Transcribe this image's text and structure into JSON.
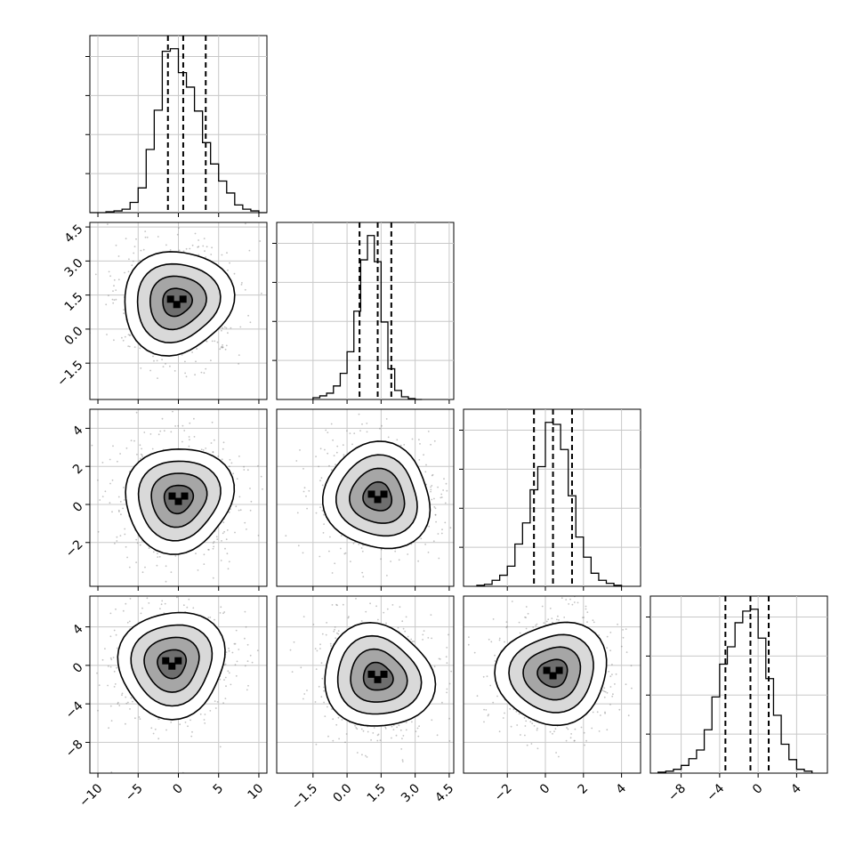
{
  "chart_data": {
    "type": "corner",
    "variables": [
      {
        "range": [
          -11,
          11
        ],
        "tick_values": [
          -10,
          -5,
          0,
          5,
          10
        ],
        "tick_labels": [
          "−10",
          "−5",
          "0",
          "5",
          "10"
        ],
        "quantiles": [
          -1.3,
          0.6,
          3.4
        ],
        "hist_bins": [
          -11,
          -10,
          -9,
          -8,
          -7,
          -6,
          -5,
          -4,
          -3,
          -2,
          -1,
          0,
          1,
          2,
          3,
          4,
          5,
          6,
          7,
          8,
          9,
          10,
          11
        ],
        "hist_counts": [
          0,
          0,
          1,
          2,
          4,
          12,
          29,
          74,
          120,
          189,
          192,
          164,
          147,
          119,
          82,
          57,
          37,
          23,
          9,
          4,
          2,
          0
        ]
      },
      {
        "range": [
          -3.1,
          4.7
        ],
        "tick_values": [
          -1.5,
          0.0,
          1.5,
          3.0,
          4.5
        ],
        "tick_labels": [
          "−1.5",
          "0.0",
          "1.5",
          "3.0",
          "4.5"
        ],
        "quantiles": [
          0.55,
          1.35,
          1.95
        ],
        "hist_bins": [
          -1.5,
          -1.2,
          -0.9,
          -0.6,
          -0.3,
          0.0,
          0.3,
          0.6,
          0.9,
          1.2,
          1.5,
          1.8,
          2.1,
          2.4,
          2.7,
          3.0,
          3.3
        ],
        "hist_counts": [
          2,
          4,
          7,
          15,
          29,
          53,
          98,
          155,
          182,
          153,
          86,
          34,
          10,
          3,
          1,
          0
        ]
      },
      {
        "range": [
          -4.3,
          5.0
        ],
        "tick_values": [
          -2,
          0,
          2,
          4
        ],
        "tick_labels": [
          "−2",
          "0",
          "2",
          "4"
        ],
        "quantiles": [
          -0.6,
          0.4,
          1.4
        ],
        "hist_bins": [
          -3.6,
          -3.2,
          -2.8,
          -2.4,
          -2.0,
          -1.6,
          -1.2,
          -0.8,
          -0.4,
          0.0,
          0.4,
          0.8,
          1.2,
          1.6,
          2.0,
          2.4,
          2.8,
          3.2,
          3.6,
          4.0
        ],
        "hist_counts": [
          1,
          2,
          6,
          11,
          20,
          42,
          63,
          96,
          119,
          163,
          161,
          136,
          90,
          49,
          29,
          13,
          6,
          3,
          1
        ]
      },
      {
        "range": [
          -11.2,
          7.2
        ],
        "tick_values": [
          -8,
          -4,
          0,
          4
        ],
        "tick_labels": [
          "−8",
          "−4",
          "0",
          "4"
        ],
        "quantiles": [
          -3.4,
          -0.8,
          1.1
        ],
        "hist_bins": [
          -10.4,
          -9.6,
          -8.8,
          -8.0,
          -7.2,
          -6.4,
          -5.6,
          -4.8,
          -4.0,
          -3.2,
          -2.4,
          -1.6,
          -0.8,
          0.0,
          0.8,
          1.6,
          2.4,
          3.2,
          4.0,
          4.8,
          5.6
        ],
        "hist_counts": [
          1,
          2,
          4,
          8,
          15,
          24,
          45,
          79,
          113,
          131,
          156,
          168,
          170,
          140,
          98,
          60,
          30,
          14,
          4,
          2
        ]
      }
    ],
    "pairs": [
      {
        "x_var": 0,
        "y_var": 1,
        "center": [
          -0.2,
          1.2
        ],
        "contour_levels": 4,
        "grid": true
      },
      {
        "x_var": 0,
        "y_var": 2,
        "center": [
          0.0,
          0.3
        ],
        "contour_levels": 4,
        "grid": true
      },
      {
        "x_var": 1,
        "y_var": 2,
        "center": [
          1.35,
          0.4
        ],
        "contour_levels": 4,
        "grid": true
      },
      {
        "x_var": 0,
        "y_var": 3,
        "center": [
          -0.8,
          0.2
        ],
        "contour_levels": 4,
        "grid": true
      },
      {
        "x_var": 1,
        "y_var": 3,
        "center": [
          1.35,
          -1.2
        ],
        "contour_levels": 4,
        "grid": true
      },
      {
        "x_var": 2,
        "y_var": 3,
        "center": [
          0.4,
          -0.8
        ],
        "contour_levels": 4,
        "grid": true
      }
    ],
    "title": "",
    "legend": false,
    "grid": true
  }
}
